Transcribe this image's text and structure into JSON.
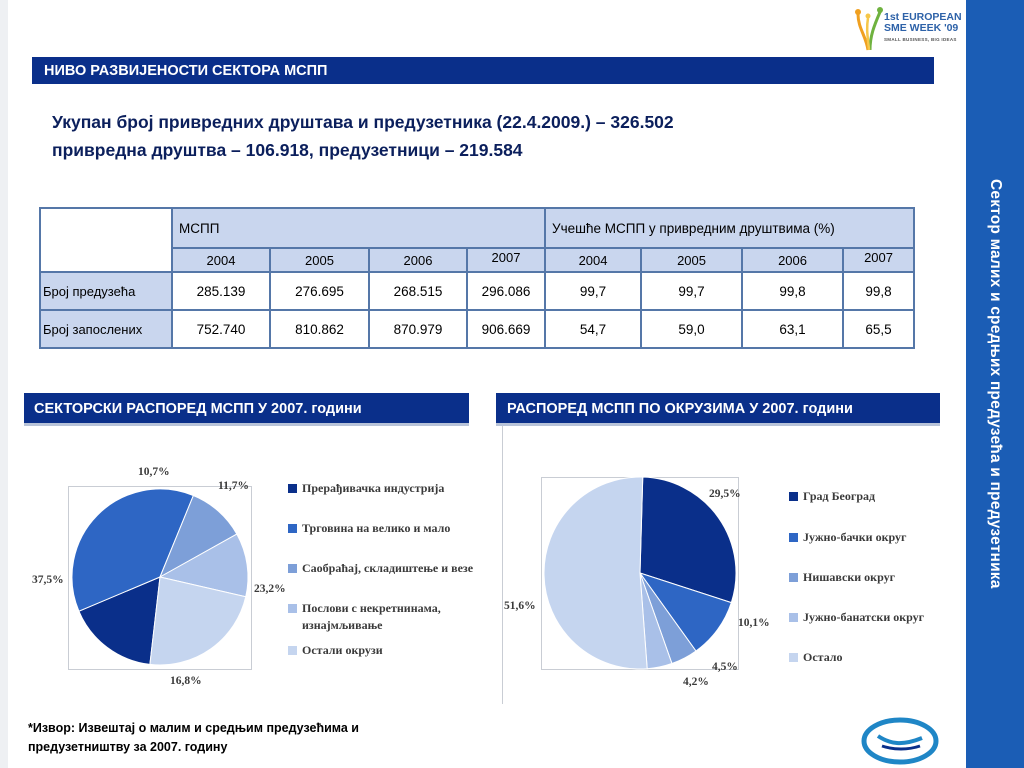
{
  "sidebar": {
    "title": "Сектор малих и средњих предузећа и предузетника"
  },
  "logo": {
    "line1": "1st EUROPEAN",
    "line2": "SME WEEK '09",
    "tagline": "SMALL BUSINESS, BIG IDEAS"
  },
  "header": {
    "title": "НИВО РАЗВИЈЕНОСТИ СЕКТОРА МСПП"
  },
  "intro": {
    "line1": "Укупан број привредних друштава и предузетника (22.4.2009.) – 326.502",
    "line2": "привредна друштва – 106.918, предузетници – 219.584"
  },
  "table": {
    "group1": "МСПП",
    "group2": "Учешће МСПП у привредним друштвима (%)",
    "years": [
      "2004",
      "2005",
      "2006",
      "2007",
      "2004",
      "2005",
      "2006",
      "2007"
    ],
    "rows": [
      {
        "label": "Број предузећа",
        "cells": [
          "285.139",
          "276.695",
          "268.515",
          "296.086",
          "99,7",
          "99,7",
          "99,8",
          "99,8"
        ]
      },
      {
        "label": "Број запослених",
        "cells": [
          "752.740",
          "810.862",
          "870.979",
          "906.669",
          "54,7",
          "59,0",
          "63,1",
          "65,5"
        ]
      }
    ]
  },
  "section1": {
    "title": "СЕКТОРСКИ РАСПОРЕД МСПП У 2007. години"
  },
  "section2": {
    "title": "РАСПОРЕД МСПП ПО ОКРУЗИМА У 2007. години"
  },
  "footnote": {
    "line1": "*Извор: Извештај о малим и средњим предузећима и",
    "line2": "предузетништву за 2007. годину"
  },
  "chart_data": [
    {
      "type": "pie",
      "title": "СЕКТОРСКИ РАСПОРЕД МСПП У 2007. години",
      "categories": [
        "Прерађивачка индустрија",
        "Трговина на велико и мало",
        "Саобраћај, складиштење и везе",
        "Послови с некретнинама, изнајмљивање",
        "Остали окрузи"
      ],
      "legend_lines": [
        [
          "Прерађивачка индустрија"
        ],
        [
          "Трговина на велико и мало"
        ],
        [
          "Саобраћај, складиштење и везе"
        ],
        [
          "Послови с некретнинама,",
          "изнајмљивање"
        ],
        [
          "Остали окрузи"
        ]
      ],
      "values": [
        16.8,
        37.5,
        10.7,
        11.7,
        23.2
      ],
      "value_labels": [
        "16,8%",
        "37,5%",
        "10,7%",
        "11,7%",
        "23,2%"
      ],
      "colors": [
        "#0a2f8a",
        "#2e66c4",
        "#7d9fd8",
        "#a9c0e8",
        "#c5d5ef"
      ],
      "legend_position": "right"
    },
    {
      "type": "pie",
      "title": "РАСПОРЕД МСПП ПО ОКРУЗИМА У 2007. години",
      "categories": [
        "Град Београд",
        "Јужно-бачки округ",
        "Нишавски округ",
        "Јужно-банатски округ",
        "Остало"
      ],
      "legend_lines": [
        [
          "Град Београд"
        ],
        [
          "Јужно-бачки округ"
        ],
        [
          "Нишавски округ"
        ],
        [
          "Јужно-банатски округ"
        ],
        [
          "Остало"
        ]
      ],
      "values": [
        29.5,
        10.1,
        4.5,
        4.2,
        51.6
      ],
      "value_labels": [
        "29,5%",
        "10,1%",
        "4,5%",
        "4,2%",
        "51,6%"
      ],
      "colors": [
        "#0a2f8a",
        "#2e66c4",
        "#7d9fd8",
        "#a9c0e8",
        "#c5d5ef"
      ],
      "legend_position": "right"
    }
  ]
}
